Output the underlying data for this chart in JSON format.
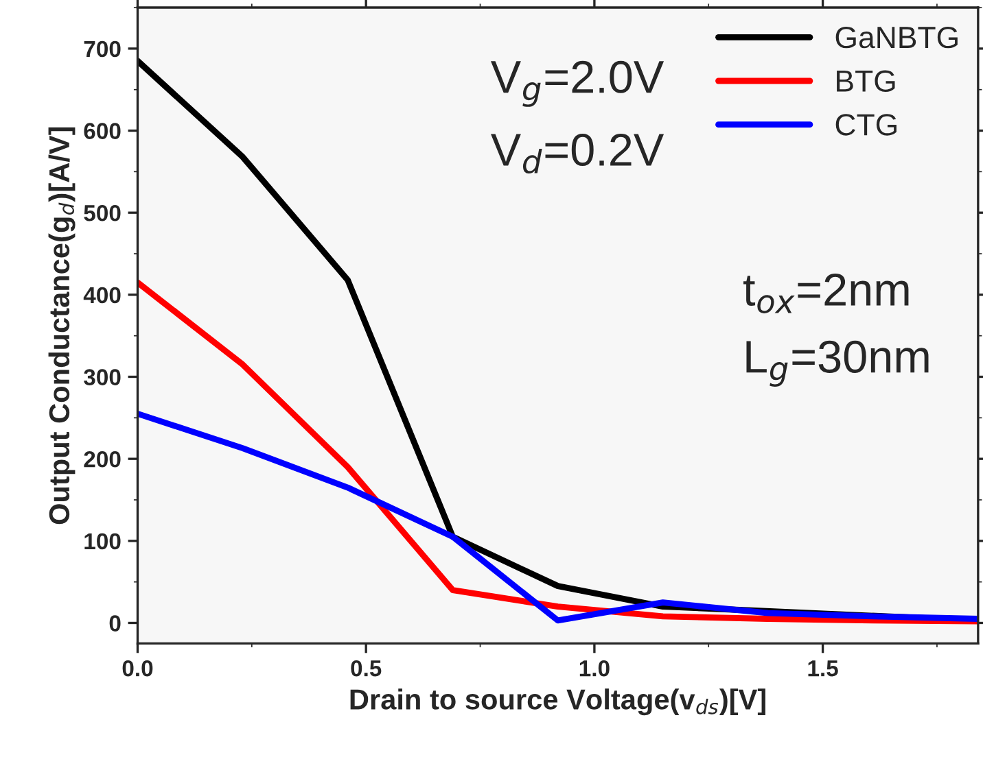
{
  "chart_data": {
    "type": "line",
    "xlabel": "Drain to source Voltage(v$_{ds}$)[V]",
    "ylabel": "Output Conductance(g$_{d}$)[A/V]",
    "x": [
      0,
      0.23,
      0.46,
      0.69,
      0.92,
      1.15,
      1.38,
      1.61,
      1.84
    ],
    "series": [
      {
        "name": "GaNBTG",
        "color": "#000000",
        "values": [
          685,
          568,
          418,
          105,
          45,
          20,
          null,
          null,
          3
        ]
      },
      {
        "name": "BTG",
        "color": "#ff0000",
        "values": [
          415,
          315,
          190,
          40,
          20,
          8,
          5,
          3,
          2
        ]
      },
      {
        "name": "CTG",
        "color": "#0000ff",
        "values": [
          255,
          213,
          165,
          105,
          3,
          25,
          12,
          8,
          5
        ]
      }
    ],
    "xlim": [
      0,
      1.84
    ],
    "ylim": [
      -25,
      750
    ],
    "xticks": [
      {
        "value": 0,
        "label": "0.0"
      },
      {
        "value": 0.5,
        "label": "0.5"
      },
      {
        "value": 1,
        "label": "1.0"
      },
      {
        "value": 1.5,
        "label": "1.5"
      }
    ],
    "yticks": [
      0,
      100,
      200,
      300,
      400,
      500,
      600,
      700
    ],
    "annotations": [
      "V$_{g}$=2.0V",
      "V$_{d}$=0.2V",
      "t$_{ox}$=2nm",
      "L$_{g}$=30nm"
    ],
    "legend": "top right",
    "grid": false,
    "marker": "none",
    "line_style": "solid"
  }
}
